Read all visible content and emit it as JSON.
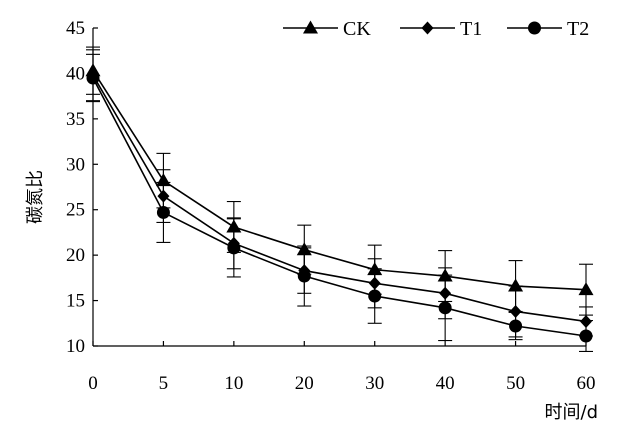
{
  "chart_data": {
    "type": "line",
    "title": "",
    "xlabel": "时间/d",
    "ylabel": "碳氮比",
    "categories": [
      "0",
      "5",
      "10",
      "20",
      "30",
      "40",
      "50",
      "60"
    ],
    "ylim": [
      10,
      45
    ],
    "yticks": [
      "10",
      "15",
      "20",
      "25",
      "30",
      "35",
      "40",
      "45"
    ],
    "grid": false,
    "legend_position": "top-right",
    "series": [
      {
        "name": "CK",
        "marker": "triangle",
        "values": [
          40.3,
          28.2,
          23.1,
          20.6,
          18.4,
          17.7,
          16.6,
          16.2
        ],
        "errors": [
          2.6,
          3.0,
          2.8,
          2.7,
          2.7,
          2.8,
          2.8,
          2.8
        ]
      },
      {
        "name": "T1",
        "marker": "diamond",
        "values": [
          39.8,
          26.5,
          21.3,
          18.3,
          16.9,
          15.8,
          13.8,
          12.7
        ],
        "errors": [
          2.8,
          2.9,
          2.8,
          2.5,
          2.7,
          2.8,
          2.8,
          1.6
        ]
      },
      {
        "name": "T2",
        "marker": "circle",
        "values": [
          39.5,
          24.7,
          20.8,
          17.7,
          15.5,
          14.2,
          12.2,
          11.1
        ],
        "errors": [
          2.6,
          3.3,
          3.2,
          3.3,
          3.0,
          3.6,
          1.5,
          1.7
        ]
      }
    ]
  }
}
